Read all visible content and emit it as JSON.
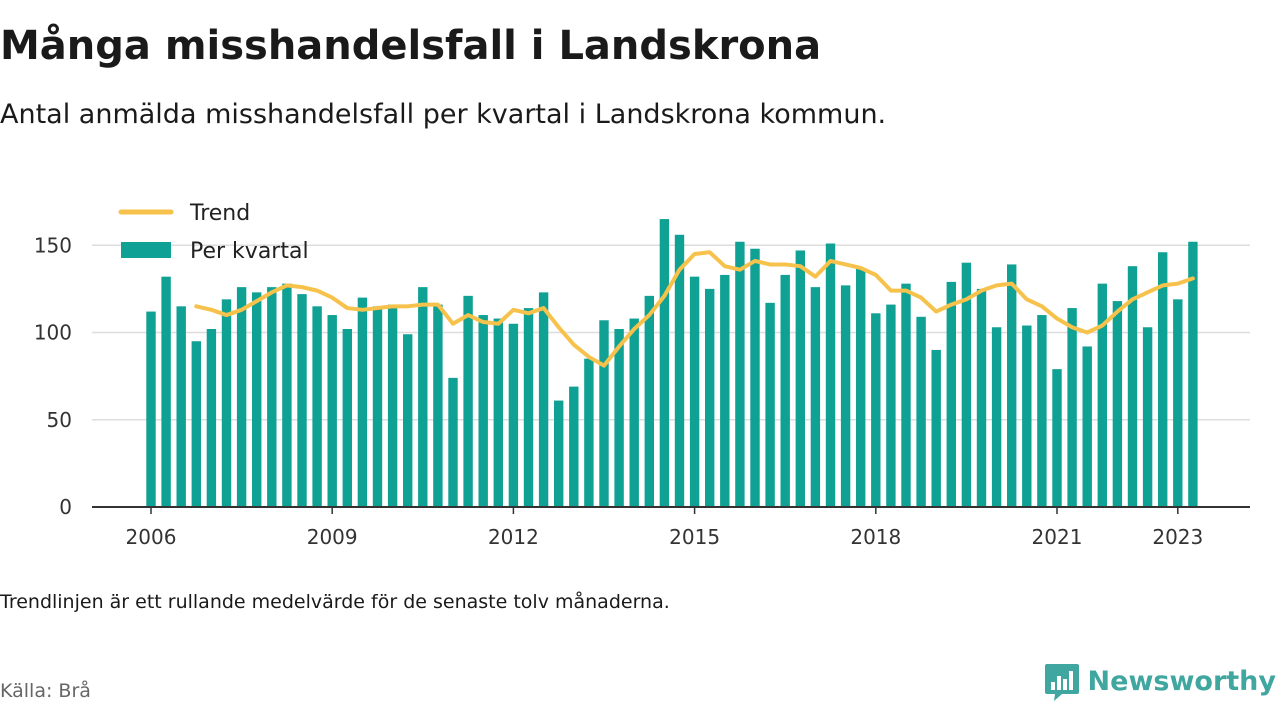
{
  "title": "Många misshandelsfall i Landskrona",
  "subtitle": "Antal anmälda misshandelsfall per kvartal i Landskrona kommun.",
  "note": "Trendlinjen är ett rullande medelvärde för de senaste tolv månaderna.",
  "source": "Källa: Brå",
  "brand": {
    "name": "Newsworthy",
    "logo_icon": "bar-chart-bubble-icon",
    "color": "#3fa6a0"
  },
  "chart_data": {
    "type": "bar",
    "x_start_year": 2006,
    "x_ticks": [
      "2006",
      "2009",
      "2012",
      "2015",
      "2018",
      "2021",
      "2023"
    ],
    "y_ticks": [
      0,
      50,
      100,
      150
    ],
    "ylim": [
      0,
      165
    ],
    "grid": true,
    "legend_position": "top-left",
    "series": [
      {
        "name": "Per kvartal",
        "color": "#0fa193",
        "values": [
          112,
          132,
          115,
          95,
          102,
          119,
          126,
          123,
          126,
          128,
          122,
          115,
          110,
          102,
          120,
          115,
          116,
          99,
          126,
          116,
          74,
          121,
          110,
          108,
          105,
          114,
          123,
          61,
          69,
          85,
          107,
          102,
          108,
          121,
          165,
          156,
          132,
          125,
          133,
          152,
          148,
          117,
          133,
          147,
          126,
          151,
          127,
          137,
          111,
          116,
          128,
          109,
          90,
          129,
          140,
          125,
          103,
          139,
          104,
          110,
          79,
          114,
          92,
          128,
          118,
          138,
          103,
          146,
          119,
          152
        ]
      },
      {
        "name": "Trend",
        "color": "#f6c24b",
        "values": [
          null,
          null,
          null,
          115,
          113,
          110,
          113,
          118,
          123,
          127,
          126,
          124,
          120,
          114,
          113,
          114,
          115,
          115,
          116,
          116,
          105,
          110,
          106,
          105,
          113,
          111,
          114,
          103,
          93,
          86,
          81,
          92,
          102,
          110,
          121,
          136,
          145,
          146,
          138,
          136,
          141,
          139,
          139,
          138,
          132,
          141,
          139,
          137,
          133,
          124,
          124,
          120,
          112,
          116,
          119,
          124,
          127,
          128,
          119,
          115,
          108,
          103,
          100,
          104,
          112,
          119,
          123,
          127,
          128,
          131
        ]
      }
    ]
  }
}
